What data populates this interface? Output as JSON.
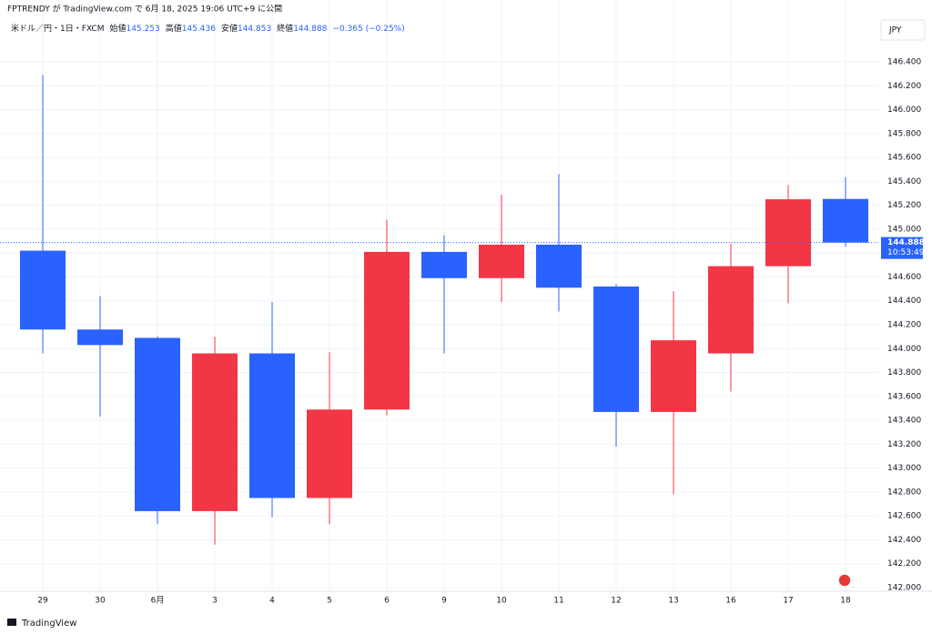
{
  "chart_data": {
    "type": "candlestick",
    "subtitle": "FPTRENDY が TradingView.com で 6月 18, 2025 19:06 UTC+9 に公開",
    "symbol": "米ドル／円・1日・FXCM",
    "legend": [
      {
        "label": "始値",
        "value": "145.253"
      },
      {
        "label": "高値",
        "value": "145.436"
      },
      {
        "label": "安値",
        "value": "144.853"
      },
      {
        "label": "終値",
        "value": "144.888"
      }
    ],
    "change": "−0.365 (−0.25%)",
    "currency": "JPY",
    "categories": [
      "29",
      "30",
      "6月",
      "3",
      "4",
      "5",
      "6",
      "9",
      "10",
      "11",
      "12",
      "13",
      "16",
      "17",
      "18"
    ],
    "open": [
      144.82,
      144.16,
      144.09,
      142.64,
      143.96,
      142.75,
      143.49,
      144.81,
      144.59,
      144.87,
      144.52,
      143.47,
      143.96,
      144.69,
      145.253
    ],
    "high": [
      146.29,
      144.44,
      144.1,
      144.1,
      144.39,
      143.97,
      145.08,
      144.95,
      145.29,
      145.46,
      144.54,
      144.48,
      144.88,
      145.37,
      145.436
    ],
    "low": [
      143.96,
      143.43,
      142.53,
      142.36,
      142.59,
      142.53,
      143.44,
      143.96,
      144.39,
      144.31,
      143.18,
      142.78,
      143.64,
      144.38,
      144.853
    ],
    "close": [
      144.16,
      144.03,
      142.64,
      143.96,
      142.75,
      143.49,
      144.81,
      144.59,
      144.87,
      144.51,
      143.47,
      144.07,
      144.69,
      145.25,
      144.888
    ],
    "up_color": "#f23645",
    "down_color": "#2962ff",
    "ylim": [
      141.98,
      146.8
    ],
    "yticks": [
      {
        "value": 142,
        "label": "142.000"
      },
      {
        "value": 142.2,
        "label": "142.200"
      },
      {
        "value": 142.4,
        "label": "142.400"
      },
      {
        "value": 142.6,
        "label": "142.600"
      },
      {
        "value": 142.8,
        "label": "142.800"
      },
      {
        "value": 143,
        "label": "143.000"
      },
      {
        "value": 143.2,
        "label": "143.200"
      },
      {
        "value": 143.4,
        "label": "143.400"
      },
      {
        "value": 143.6,
        "label": "143.600"
      },
      {
        "value": 143.8,
        "label": "143.800"
      },
      {
        "value": 144,
        "label": "144.000"
      },
      {
        "value": 144.2,
        "label": "144.200"
      },
      {
        "value": 144.4,
        "label": "144.400"
      },
      {
        "value": 144.6,
        "label": "144.600"
      },
      {
        "value": 144.8,
        "label": "144.800"
      },
      {
        "value": 145,
        "label": "145.000"
      },
      {
        "value": 145.2,
        "label": "145.200"
      },
      {
        "value": 145.4,
        "label": "145.400"
      },
      {
        "value": 145.6,
        "label": "145.600"
      },
      {
        "value": 145.8,
        "label": "145.800"
      },
      {
        "value": 146,
        "label": "146.000"
      },
      {
        "value": 146.2,
        "label": "146.200"
      },
      {
        "value": 146.4,
        "label": "146.400"
      }
    ],
    "grid": true,
    "last_price": {
      "value": 144.888,
      "label": "144.888"
    },
    "countdown": "10:53:49",
    "footer": "TradingView"
  }
}
